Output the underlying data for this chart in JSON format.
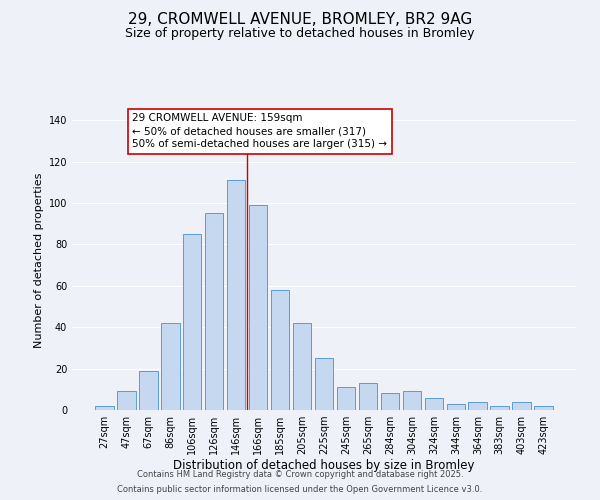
{
  "title": "29, CROMWELL AVENUE, BROMLEY, BR2 9AG",
  "subtitle": "Size of property relative to detached houses in Bromley",
  "xlabel": "Distribution of detached houses by size in Bromley",
  "ylabel": "Number of detached properties",
  "bar_labels": [
    "27sqm",
    "47sqm",
    "67sqm",
    "86sqm",
    "106sqm",
    "126sqm",
    "146sqm",
    "166sqm",
    "185sqm",
    "205sqm",
    "225sqm",
    "245sqm",
    "265sqm",
    "284sqm",
    "304sqm",
    "324sqm",
    "344sqm",
    "364sqm",
    "383sqm",
    "403sqm",
    "423sqm"
  ],
  "bar_values": [
    2,
    9,
    19,
    42,
    85,
    95,
    111,
    99,
    58,
    42,
    25,
    11,
    13,
    8,
    9,
    6,
    3,
    4,
    2,
    4,
    2
  ],
  "bar_color": "#c5d8f0",
  "bar_edgecolor": "#5b9bd5",
  "vline_x_index": 6.5,
  "vline_color": "#cc0000",
  "ylim": [
    0,
    145
  ],
  "yticks": [
    0,
    20,
    40,
    60,
    80,
    100,
    120,
    140
  ],
  "background_color": "#eef2f8",
  "grid_color": "#ffffff",
  "annotation_title": "29 CROMWELL AVENUE: 159sqm",
  "annotation_line1": "← 50% of detached houses are smaller (317)",
  "annotation_line2": "50% of semi-detached houses are larger (315) →",
  "annotation_box_color": "#ffffff",
  "annotation_box_edge": "#cc0000",
  "footer1": "Contains HM Land Registry data © Crown copyright and database right 2025.",
  "footer2": "Contains public sector information licensed under the Open Government Licence v3.0.",
  "title_fontsize": 11,
  "subtitle_fontsize": 9,
  "xlabel_fontsize": 8.5,
  "ylabel_fontsize": 8,
  "tick_fontsize": 7,
  "annotation_fontsize": 7.5,
  "footer_fontsize": 6
}
